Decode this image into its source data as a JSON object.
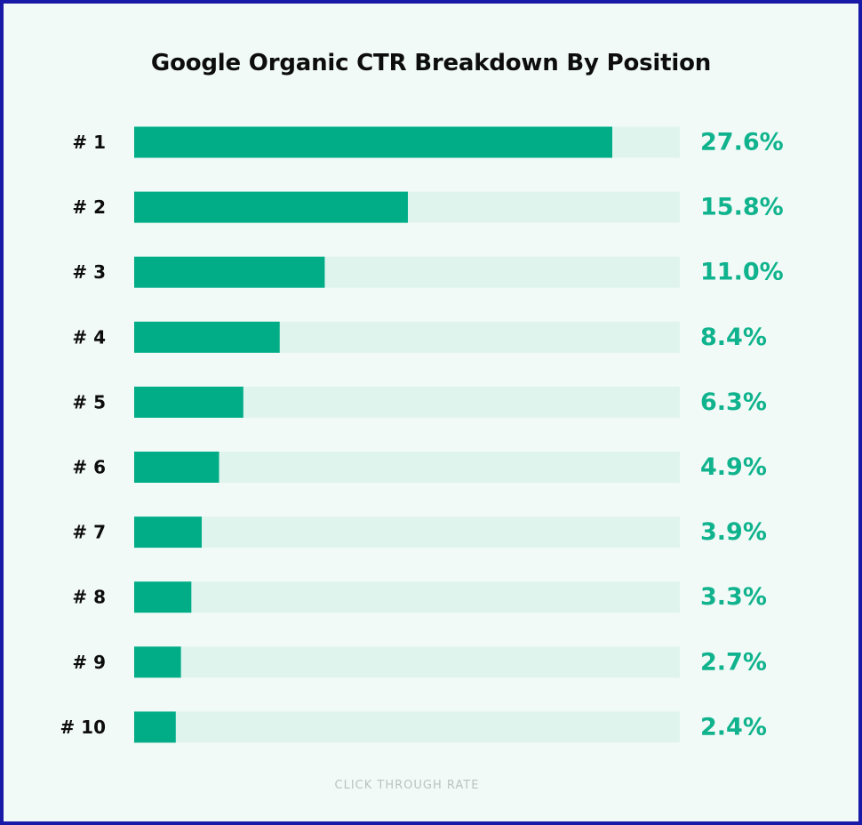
{
  "chart_data": {
    "type": "bar",
    "orientation": "horizontal",
    "title": "Google Organic CTR Breakdown By Position",
    "xlabel": "CLICK THROUGH RATE",
    "ylabel": "",
    "categories": [
      "# 1",
      "# 2",
      "# 3",
      "# 4",
      "# 5",
      "# 6",
      "# 7",
      "# 8",
      "# 9",
      "# 10"
    ],
    "values": [
      27.6,
      15.8,
      11.0,
      8.4,
      6.3,
      4.9,
      3.9,
      3.3,
      2.7,
      2.4
    ],
    "value_labels": [
      "27.6%",
      "15.8%",
      "11.0%",
      "8.4%",
      "6.3%",
      "4.9%",
      "3.9%",
      "3.3%",
      "2.7%",
      "2.4%"
    ],
    "xlim": [
      0,
      31.5
    ],
    "grid": false,
    "legend": "none",
    "colors": {
      "bar": "#00ad87",
      "track": "#e0f4ee",
      "value_text": "#10b38d",
      "category_text": "#0d0d0d",
      "background": "#f2faf7",
      "frame": "#1a1aa8",
      "axis_label": "#b9c3c0"
    }
  }
}
